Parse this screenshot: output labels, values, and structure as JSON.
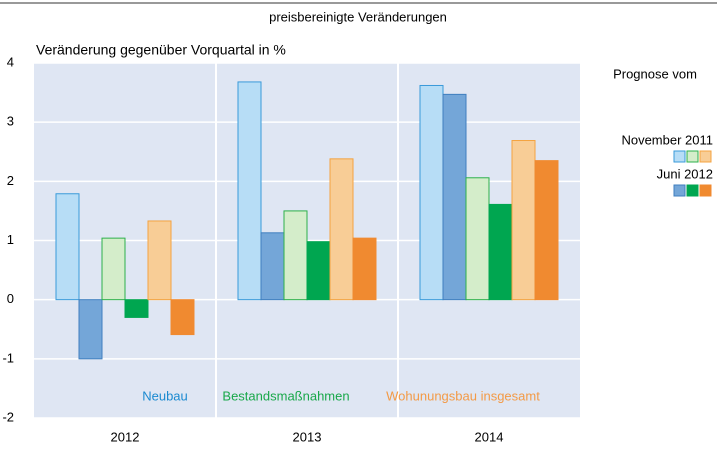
{
  "chart_data": {
    "type": "bar",
    "title": "preisbereinigte Veränderungen",
    "ylabel": "Veränderung gegenüber Vorquartal in %",
    "categories": [
      "2012",
      "2013",
      "2014"
    ],
    "groups": [
      {
        "name": "Neubau",
        "color": "#1b8ad0"
      },
      {
        "name": "Bestandsmaßnahmen",
        "color": "#19a84a"
      },
      {
        "name": "Wohunungsbau insgesamt",
        "color": "#f39a46"
      }
    ],
    "legend": {
      "title": "Prognose vom",
      "entries": [
        "November 2011",
        "Juni 2012"
      ]
    },
    "series": [
      {
        "color": "#b7ddf6",
        "stroke": "#3a9ad9",
        "values": [
          1.79,
          3.68,
          3.62
        ]
      },
      {
        "color": "#74a6d8",
        "stroke": "#3f7fbf",
        "values": [
          -1.0,
          1.13,
          3.47
        ]
      },
      {
        "color": "#d4edca",
        "stroke": "#2db04b",
        "values": [
          1.04,
          1.5,
          2.06
        ]
      },
      {
        "color": "#00a650",
        "stroke": "#00a650",
        "values": [
          -0.3,
          0.98,
          1.61
        ]
      },
      {
        "color": "#f8cd96",
        "stroke": "#f4a340",
        "values": [
          1.33,
          2.38,
          2.69
        ]
      },
      {
        "color": "#f08a30",
        "stroke": "#f08a30",
        "values": [
          -0.59,
          1.04,
          2.35
        ]
      }
    ],
    "ylim": [
      -2,
      4
    ],
    "yticks": [
      -2,
      -1,
      0,
      1,
      2,
      3,
      4
    ],
    "grid": true
  }
}
